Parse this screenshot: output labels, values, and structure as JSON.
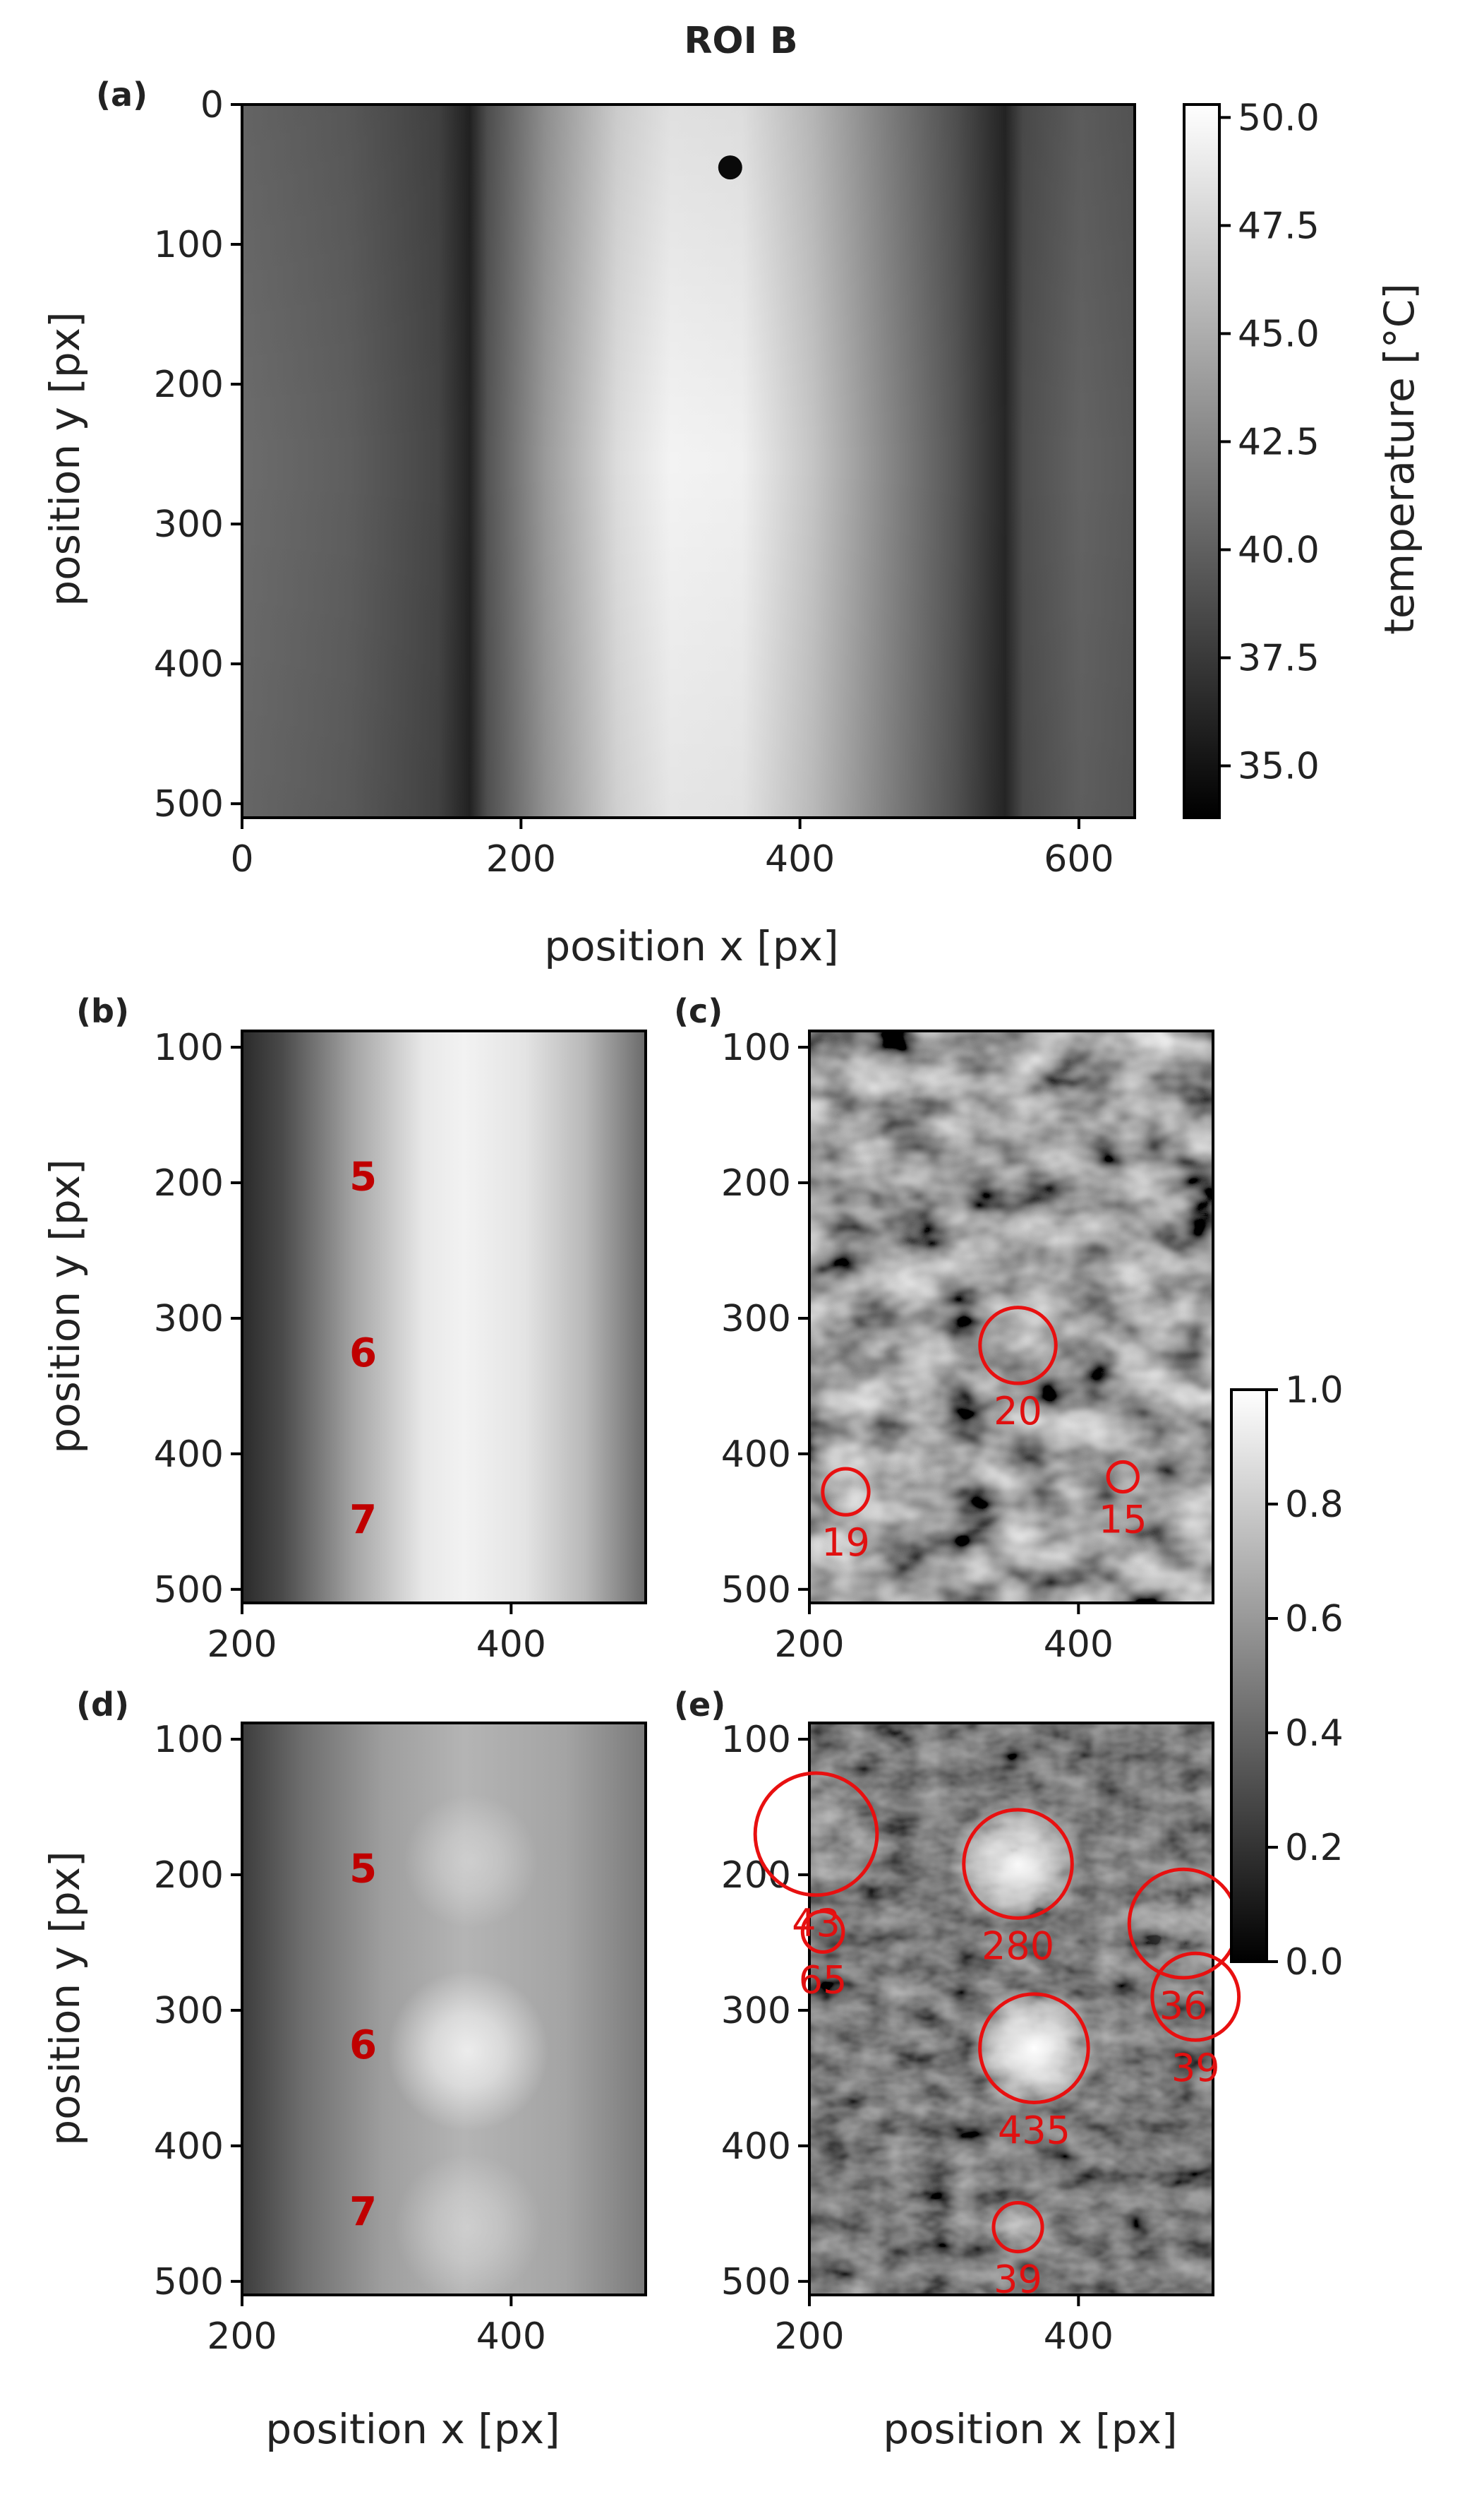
{
  "title": "ROI B",
  "colors": {
    "annotation_dark_red": "#c00000",
    "circle_red": "#e81010"
  },
  "chart_data": [
    {
      "panel": "(a)",
      "type": "heatmap",
      "xlabel": "position x [px]",
      "ylabel": "position y [px]",
      "xlim": [
        0,
        640
      ],
      "ylim": [
        510,
        0
      ],
      "xticks": [
        "0",
        "200",
        "400",
        "600"
      ],
      "yticks": [
        "0",
        "100",
        "200",
        "300",
        "400",
        "500"
      ],
      "colorbar": {
        "label": "temperature [°C]",
        "range": [
          33.8,
          50.3
        ],
        "ticks": [
          "35.0",
          "37.5",
          "40.0",
          "42.5",
          "45.0",
          "47.5",
          "50.0"
        ],
        "colormap": "gray"
      }
    },
    {
      "panel": "(b)",
      "type": "heatmap",
      "xlabel": "",
      "ylabel": "position y [px]",
      "xlim": [
        200,
        500
      ],
      "ylim": [
        510,
        88
      ],
      "xticks": [
        "200",
        "400"
      ],
      "yticks": [
        "100",
        "200",
        "300",
        "400",
        "500"
      ],
      "annotations": [
        {
          "text": "5",
          "x": 290,
          "y": 195
        },
        {
          "text": "6",
          "x": 290,
          "y": 325
        },
        {
          "text": "7",
          "x": 290,
          "y": 448
        }
      ]
    },
    {
      "panel": "(c)",
      "type": "heatmap",
      "xlabel": "",
      "ylabel": "",
      "xlim": [
        200,
        500
      ],
      "ylim": [
        510,
        88
      ],
      "xticks": [
        "200",
        "400"
      ],
      "yticks": [
        "100",
        "200",
        "300",
        "400",
        "500"
      ],
      "circles": [
        {
          "label": "20",
          "x": 355,
          "y": 320,
          "r": 28
        },
        {
          "label": "19",
          "x": 227,
          "y": 428,
          "r": 17
        },
        {
          "label": "15",
          "x": 433,
          "y": 417,
          "r": 11
        }
      ]
    },
    {
      "panel": "(d)",
      "type": "heatmap",
      "xlabel": "position x [px]",
      "ylabel": "position y [px]",
      "xlim": [
        200,
        500
      ],
      "ylim": [
        510,
        88
      ],
      "xticks": [
        "200",
        "400"
      ],
      "yticks": [
        "100",
        "200",
        "300",
        "400",
        "500"
      ],
      "annotations": [
        {
          "text": "5",
          "x": 290,
          "y": 195
        },
        {
          "text": "6",
          "x": 290,
          "y": 325
        },
        {
          "text": "7",
          "x": 290,
          "y": 448
        }
      ]
    },
    {
      "panel": "(e)",
      "type": "heatmap",
      "xlabel": "position x [px]",
      "ylabel": "",
      "xlim": [
        200,
        500
      ],
      "ylim": [
        510,
        88
      ],
      "xticks": [
        "200",
        "400"
      ],
      "yticks": [
        "100",
        "200",
        "300",
        "400",
        "500"
      ],
      "circles": [
        {
          "label": "43",
          "x": 205,
          "y": 170,
          "r": 45
        },
        {
          "label": "65",
          "x": 210,
          "y": 242,
          "r": 15
        },
        {
          "label": "280",
          "x": 355,
          "y": 192,
          "r": 40
        },
        {
          "label": "36",
          "x": 478,
          "y": 236,
          "r": 40
        },
        {
          "label": "39",
          "x": 487,
          "y": 290,
          "r": 32
        },
        {
          "label": "435",
          "x": 367,
          "y": 328,
          "r": 40
        },
        {
          "label": "39",
          "x": 355,
          "y": 460,
          "r": 18
        }
      ],
      "colorbar": {
        "range": [
          0.0,
          1.0
        ],
        "ticks": [
          "0.0",
          "0.2",
          "0.4",
          "0.6",
          "0.8",
          "1.0"
        ],
        "colormap": "gray"
      }
    }
  ]
}
